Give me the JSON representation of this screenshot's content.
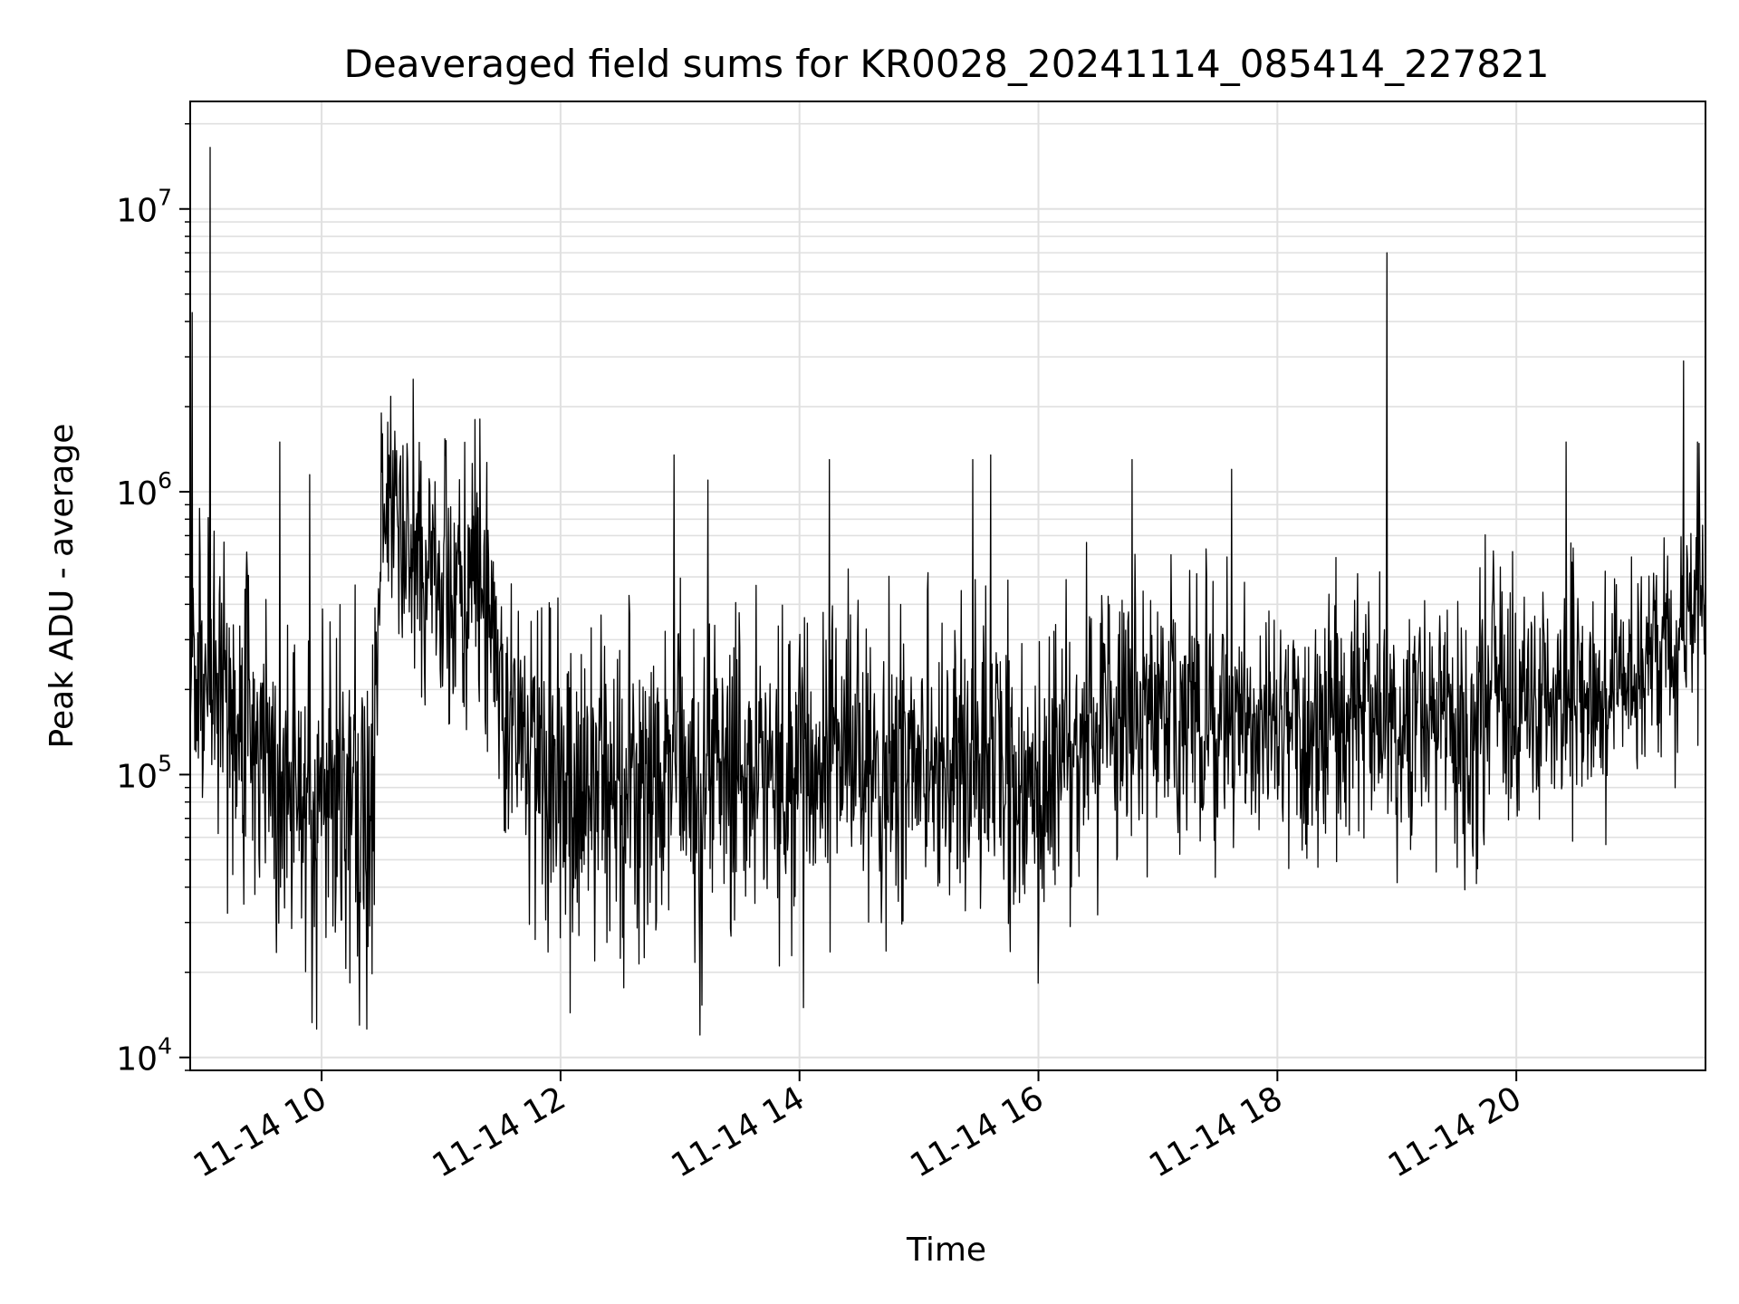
{
  "chart_data": {
    "type": "line",
    "title": "Deaveraged field sums for KR0028_20241114_085414_227821",
    "xlabel": "Time",
    "ylabel": "Peak ADU - average",
    "yscale": "log",
    "xlim": [
      "2024-11-14 08:54",
      "2024-11-14 21:35"
    ],
    "ylim": [
      9000,
      24000000
    ],
    "grid": true,
    "line_color": "#000000",
    "x_ticks": [
      {
        "value": "2024-11-14 10:00",
        "label": "11-14 10"
      },
      {
        "value": "2024-11-14 12:00",
        "label": "11-14 12"
      },
      {
        "value": "2024-11-14 14:00",
        "label": "11-14 14"
      },
      {
        "value": "2024-11-14 16:00",
        "label": "11-14 16"
      },
      {
        "value": "2024-11-14 18:00",
        "label": "11-14 18"
      },
      {
        "value": "2024-11-14 20:00",
        "label": "11-14 20"
      }
    ],
    "y_ticks": [
      {
        "value": 10000,
        "base": "10",
        "exp": "4"
      },
      {
        "value": 100000,
        "base": "10",
        "exp": "5"
      },
      {
        "value": 1000000,
        "base": "10",
        "exp": "6"
      },
      {
        "value": 10000000,
        "base": "10",
        "exp": "7"
      }
    ],
    "trend": [
      {
        "t": "2024-11-14 08:54",
        "v": 250000,
        "spread": 0.25
      },
      {
        "t": "2024-11-14 09:10",
        "v": 220000,
        "spread": 0.28
      },
      {
        "t": "2024-11-14 09:30",
        "v": 120000,
        "spread": 0.3
      },
      {
        "t": "2024-11-14 09:50",
        "v": 60000,
        "spread": 0.3
      },
      {
        "t": "2024-11-14 10:10",
        "v": 80000,
        "spread": 0.3
      },
      {
        "t": "2024-11-14 10:25",
        "v": 60000,
        "spread": 0.3
      },
      {
        "t": "2024-11-14 10:30",
        "v": 700000,
        "spread": 0.2
      },
      {
        "t": "2024-11-14 11:00",
        "v": 500000,
        "spread": 0.22
      },
      {
        "t": "2024-11-14 11:20",
        "v": 450000,
        "spread": 0.22
      },
      {
        "t": "2024-11-14 11:35",
        "v": 150000,
        "spread": 0.27
      },
      {
        "t": "2024-11-14 12:00",
        "v": 100000,
        "spread": 0.3
      },
      {
        "t": "2024-11-14 12:30",
        "v": 80000,
        "spread": 0.3
      },
      {
        "t": "2024-11-14 13:00",
        "v": 90000,
        "spread": 0.3
      },
      {
        "t": "2024-11-14 13:30",
        "v": 110000,
        "spread": 0.28
      },
      {
        "t": "2024-11-14 14:00",
        "v": 110000,
        "spread": 0.28
      },
      {
        "t": "2024-11-14 14:30",
        "v": 120000,
        "spread": 0.27
      },
      {
        "t": "2024-11-14 15:00",
        "v": 100000,
        "spread": 0.27
      },
      {
        "t": "2024-11-14 15:30",
        "v": 110000,
        "spread": 0.27
      },
      {
        "t": "2024-11-14 16:00",
        "v": 90000,
        "spread": 0.26
      },
      {
        "t": "2024-11-14 16:30",
        "v": 150000,
        "spread": 0.25
      },
      {
        "t": "2024-11-14 17:00",
        "v": 160000,
        "spread": 0.25
      },
      {
        "t": "2024-11-14 17:30",
        "v": 150000,
        "spread": 0.25
      },
      {
        "t": "2024-11-14 18:00",
        "v": 160000,
        "spread": 0.25
      },
      {
        "t": "2024-11-14 18:30",
        "v": 180000,
        "spread": 0.25
      },
      {
        "t": "2024-11-14 19:00",
        "v": 150000,
        "spread": 0.25
      },
      {
        "t": "2024-11-14 19:30",
        "v": 140000,
        "spread": 0.25
      },
      {
        "t": "2024-11-14 20:00",
        "v": 180000,
        "spread": 0.24
      },
      {
        "t": "2024-11-14 20:30",
        "v": 200000,
        "spread": 0.22
      },
      {
        "t": "2024-11-14 21:00",
        "v": 220000,
        "spread": 0.2
      },
      {
        "t": "2024-11-14 21:15",
        "v": 300000,
        "spread": 0.2
      },
      {
        "t": "2024-11-14 21:35",
        "v": 500000,
        "spread": 0.2
      }
    ],
    "spikes": [
      {
        "t": "2024-11-14 08:55",
        "v": 4300000
      },
      {
        "t": "2024-11-14 09:04",
        "v": 16500000
      },
      {
        "t": "2024-11-14 09:39",
        "v": 1500000
      },
      {
        "t": "2024-11-14 09:54",
        "v": 1150000
      },
      {
        "t": "2024-11-14 10:19",
        "v": 13000
      },
      {
        "t": "2024-11-14 10:30",
        "v": 1900000
      },
      {
        "t": "2024-11-14 10:46",
        "v": 2500000
      },
      {
        "t": "2024-11-14 11:17",
        "v": 1800000
      },
      {
        "t": "2024-11-14 12:57",
        "v": 1350000
      },
      {
        "t": "2024-11-14 13:10",
        "v": 12000
      },
      {
        "t": "2024-11-14 13:14",
        "v": 1100000
      },
      {
        "t": "2024-11-14 14:02",
        "v": 15000
      },
      {
        "t": "2024-11-14 14:15",
        "v": 1300000
      },
      {
        "t": "2024-11-14 15:27",
        "v": 1300000
      },
      {
        "t": "2024-11-14 15:36",
        "v": 1350000
      },
      {
        "t": "2024-11-14 16:47",
        "v": 1300000
      },
      {
        "t": "2024-11-14 17:37",
        "v": 1200000
      },
      {
        "t": "2024-11-14 18:55",
        "v": 7000000
      },
      {
        "t": "2024-11-14 20:25",
        "v": 1500000
      },
      {
        "t": "2024-11-14 21:24",
        "v": 2900000
      },
      {
        "t": "2024-11-14 21:31",
        "v": 1500000
      }
    ]
  }
}
